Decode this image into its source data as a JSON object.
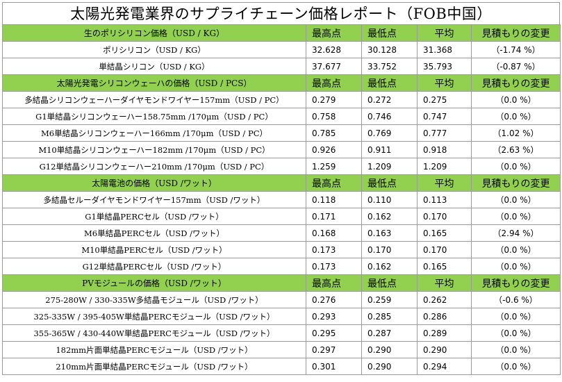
{
  "title": "太陽光発電業界のサプライチェーン価格レポート（FOB中国）",
  "sections": [
    {
      "header": {
        "label": "生のポリシリコン価格（USD / KG）",
        "high": "最高点",
        "low": "最低点",
        "avg": "平均",
        "change": "見積もりの変更"
      },
      "rows": [
        {
          "name": "ポリシリコン（USD / KG）",
          "high": "32.628",
          "low": "30.128",
          "avg": "31.368",
          "change": "（-1.74 %）"
        },
        {
          "name": "単結晶シリコン（USD / KG）",
          "high": "37.677",
          "low": "33.752",
          "avg": "35.793",
          "change": "（-0.87 %）"
        }
      ]
    },
    {
      "header": {
        "label": "太陽光発電シリコンウェーハの価格（USD / PCS）",
        "high": "最高点",
        "low": "最低点",
        "avg": "平均",
        "change": "見積もりの変更"
      },
      "rows": [
        {
          "name": "多結晶シリコンウェーハーダイヤモンドワイヤー157mm（USD / PC）",
          "high": "0.279",
          "low": "0.272",
          "avg": "0.275",
          "change": "（0.0 %）"
        },
        {
          "name": "G1単結晶シリコンウェーハー158.75mm /170μm（USD / PC）",
          "high": "0.758",
          "low": "0.746",
          "avg": "0.747",
          "change": "（0.0 %）"
        },
        {
          "name": "M6単結晶シリコンウェーハー166mm /170μm（USD / PC）",
          "high": "0.785",
          "low": "0.769",
          "avg": "0.777",
          "change": "（1.02 %）"
        },
        {
          "name": "M10単結晶シリコンウェーハー182mm /170μm（USD / PC）",
          "high": "0.926",
          "low": "0.911",
          "avg": "0.918",
          "change": "（2.63 %）"
        },
        {
          "name": "G12単結晶シリコンウェーハー210mm /170μm（USD / PC）",
          "high": "1.259",
          "low": "1.209",
          "avg": "1.209",
          "change": "（0.0 %）"
        }
      ]
    },
    {
      "header": {
        "label": "太陽電池の価格（USD /ワット）",
        "high": "最高点",
        "low": "最低点",
        "avg": "平均",
        "change": "見積もりの変更"
      },
      "rows": [
        {
          "name": "多結晶セルーダイヤモンドワイヤー157mm（USD /ワット）",
          "high": "0.118",
          "low": "0.110",
          "avg": "0.113",
          "change": "（0.0 %）"
        },
        {
          "name": "G1単結晶PERCセル（USD /ワット）",
          "high": "0.171",
          "low": "0.162",
          "avg": "0.170",
          "change": "（0.0 %）"
        },
        {
          "name": "M6単結晶PERCセル（USD /ワット）",
          "high": "0.168",
          "low": "0.163",
          "avg": "0.165",
          "change": "（2.94 %）"
        },
        {
          "name": "M10単結晶PERCセル（USD /ワット）",
          "high": "0.173",
          "low": "0.170",
          "avg": "0.170",
          "change": "（0.0 %）"
        },
        {
          "name": "G12単結晶PERCセル（USD /ワット）",
          "high": "0.173",
          "low": "0.162",
          "avg": "0.165",
          "change": "（0.0 %）"
        }
      ]
    },
    {
      "header": {
        "label": "PVモジュールの価格（USD /ワット）",
        "high": "最高点",
        "low": "最低点",
        "avg": "平均",
        "change": "見積もりの変更"
      },
      "rows": [
        {
          "name": "275-280W / 330-335W多結晶モジュール（USD /ワット）",
          "high": "0.276",
          "low": "0.259",
          "avg": "0.262",
          "change": "（-0.6 %）"
        },
        {
          "name": "325-335W / 395-405W単結晶PERCモジュール（USD /ワット）",
          "high": "0.293",
          "low": "0.285",
          "avg": "0.286",
          "change": "（0.0 %）"
        },
        {
          "name": "355-365W / 430-440W単結晶PERCモジュール（USD /ワット）",
          "high": "0.295",
          "low": "0.287",
          "avg": "0.289",
          "change": "（0.0 %）"
        },
        {
          "name": "182mm片面単結晶PERCモジュール（USD /ワット）",
          "high": "0.297",
          "low": "0.290",
          "avg": "0.290",
          "change": "（0.0 %）"
        },
        {
          "name": "210mm片面単結晶PERCモジュール（USD /ワット）",
          "high": "0.301",
          "low": "0.290",
          "avg": "0.294",
          "change": "（0.0 %）"
        }
      ]
    }
  ],
  "colors": {
    "header_bg": "#92d050",
    "border": "#9a9a9a"
  }
}
